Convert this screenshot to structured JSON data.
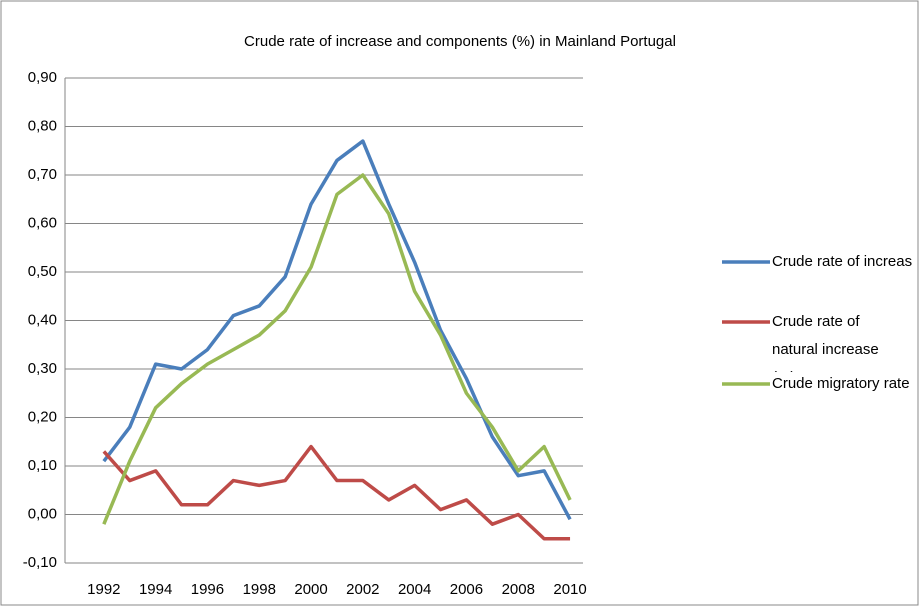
{
  "chart_data": {
    "type": "line",
    "title": "Crude rate of increase and components (%) in Mainland Portugal",
    "x": [
      1992,
      1993,
      1994,
      1995,
      1996,
      1997,
      1998,
      1999,
      2000,
      2001,
      2002,
      2003,
      2004,
      2005,
      2006,
      2007,
      2008,
      2009,
      2010
    ],
    "xlim": [
      1990.5,
      2010.5
    ],
    "xticks": [
      1992,
      1994,
      1996,
      1998,
      2000,
      2002,
      2004,
      2006,
      2008,
      2010
    ],
    "ylim": [
      -0.1,
      0.9
    ],
    "yticks": [
      {
        "value": -0.1,
        "label": "-0,10"
      },
      {
        "value": 0,
        "label": "0,00"
      },
      {
        "value": 0.1,
        "label": "0,10"
      },
      {
        "value": 0.2,
        "label": "0,20"
      },
      {
        "value": 0.3,
        "label": "0,30"
      },
      {
        "value": 0.4,
        "label": "0,40"
      },
      {
        "value": 0.5,
        "label": "0,50"
      },
      {
        "value": 0.6,
        "label": "0,60"
      },
      {
        "value": 0.7,
        "label": "0,70"
      },
      {
        "value": 0.8,
        "label": "0,80"
      },
      {
        "value": 0.9,
        "label": "0,90"
      }
    ],
    "grid": true,
    "legend": "right",
    "series": [
      {
        "name": "Crude rate of increase (%)",
        "color": "#4a7ebb",
        "values": [
          0.11,
          0.18,
          0.31,
          0.3,
          0.34,
          0.41,
          0.43,
          0.49,
          0.64,
          0.73,
          0.77,
          0.64,
          0.52,
          0.38,
          0.28,
          0.16,
          0.08,
          0.09,
          -0.01
        ]
      },
      {
        "name": "Crude rate of natural increase (%)",
        "color": "#be4b48",
        "values": [
          0.13,
          0.07,
          0.09,
          0.02,
          0.02,
          0.07,
          0.06,
          0.07,
          0.14,
          0.07,
          0.07,
          0.03,
          0.06,
          0.01,
          0.03,
          -0.02,
          0.0,
          -0.05,
          -0.05
        ]
      },
      {
        "name": "Crude migratory rate (%)",
        "color": "#98b954",
        "values": [
          -0.02,
          0.11,
          0.22,
          0.27,
          0.31,
          0.34,
          0.37,
          0.42,
          0.51,
          0.66,
          0.7,
          0.62,
          0.46,
          0.37,
          0.25,
          0.18,
          0.09,
          0.14,
          0.03
        ]
      }
    ]
  }
}
